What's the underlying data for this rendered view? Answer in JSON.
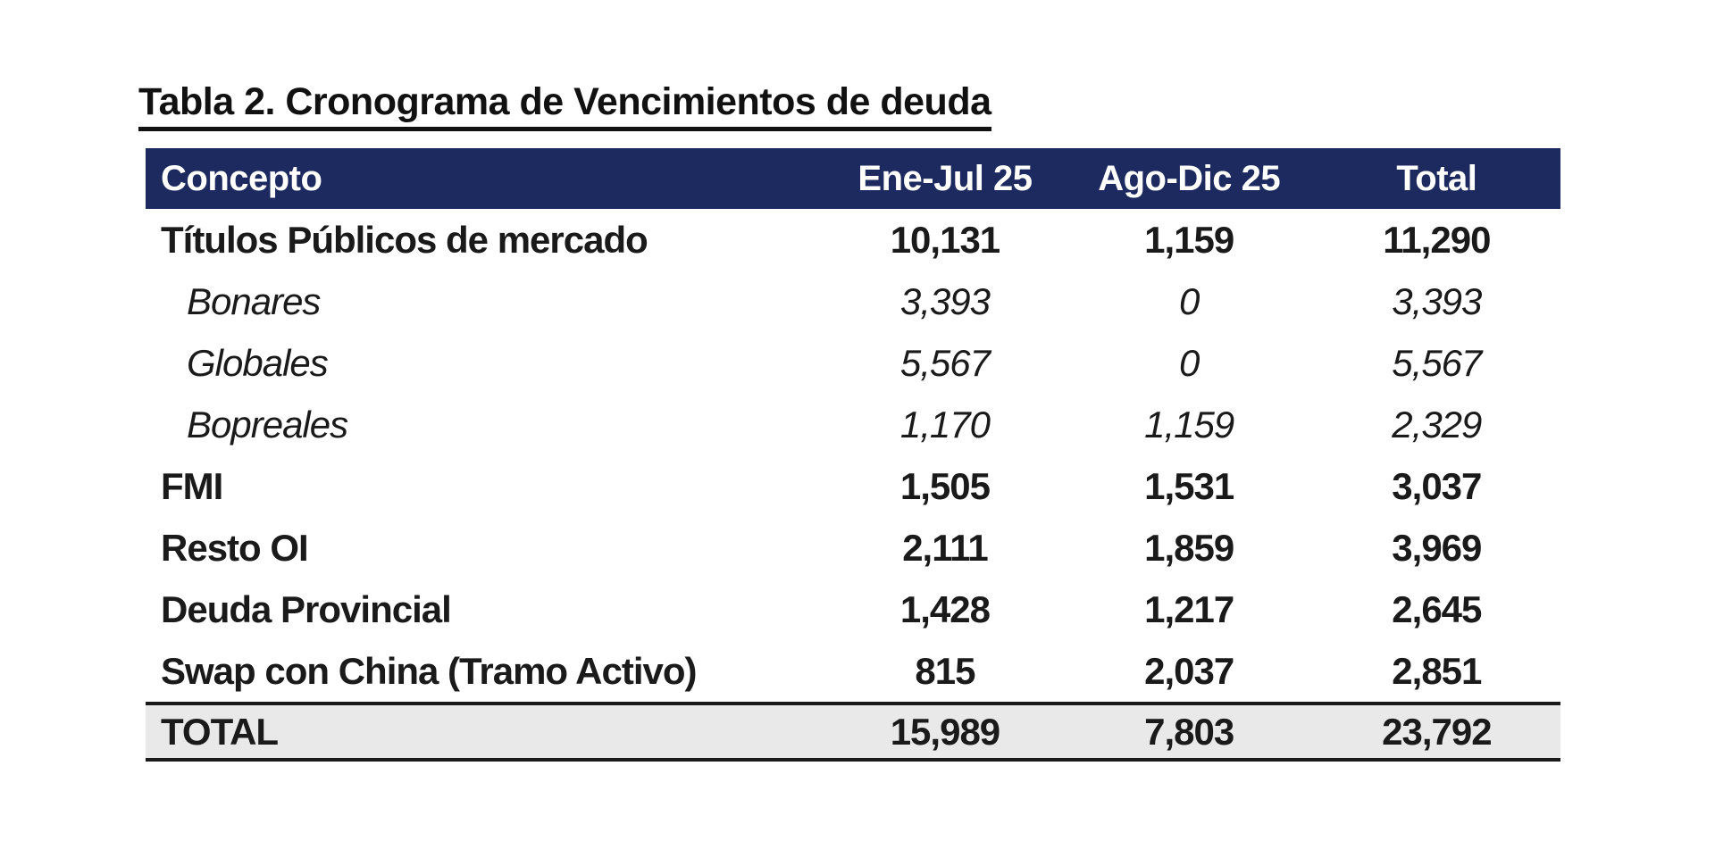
{
  "title": {
    "text": "Tabla 2. Cronograma de Vencimientos de deuda"
  },
  "colors": {
    "header_bg": "#1d2a5f",
    "header_text": "#ffffff",
    "total_row_bg": "#e9e9e9",
    "border": "#1a1a1a"
  },
  "table": {
    "columns": [
      "Concepto",
      "Ene-Jul 25",
      "Ago-Dic 25",
      "Total"
    ],
    "rows": [
      {
        "label": "Títulos Públicos de mercado",
        "style": "main",
        "values": [
          "10,131",
          "1,159",
          "11,290"
        ]
      },
      {
        "label": "Bonares",
        "style": "sub",
        "values": [
          "3,393",
          "0",
          "3,393"
        ]
      },
      {
        "label": "Globales",
        "style": "sub",
        "values": [
          "5,567",
          "0",
          "5,567"
        ]
      },
      {
        "label": "Bopreales",
        "style": "sub",
        "values": [
          "1,170",
          "1,159",
          "2,329"
        ]
      },
      {
        "label": "FMI",
        "style": "main",
        "values": [
          "1,505",
          "1,531",
          "3,037"
        ]
      },
      {
        "label": "Resto OI",
        "style": "main",
        "values": [
          "2,111",
          "1,859",
          "3,969"
        ]
      },
      {
        "label": "Deuda Provincial",
        "style": "main",
        "values": [
          "1,428",
          "1,217",
          "2,645"
        ]
      },
      {
        "label": "Swap con China (Tramo Activo)",
        "style": "main",
        "values": [
          "815",
          "2,037",
          "2,851"
        ]
      }
    ],
    "total_row": {
      "label": "TOTAL",
      "values": [
        "15,989",
        "7,803",
        "23,792"
      ]
    }
  },
  "chart_data": {
    "type": "table",
    "title": "Tabla 2. Cronograma de Vencimientos de deuda",
    "categories": [
      "Ene-Jul 25",
      "Ago-Dic 25",
      "Total"
    ],
    "series": [
      {
        "name": "Títulos Públicos de mercado",
        "values": [
          10131,
          1159,
          11290
        ]
      },
      {
        "name": "Bonares",
        "values": [
          3393,
          0,
          3393
        ]
      },
      {
        "name": "Globales",
        "values": [
          5567,
          0,
          5567
        ]
      },
      {
        "name": "Bopreales",
        "values": [
          1170,
          1159,
          2329
        ]
      },
      {
        "name": "FMI",
        "values": [
          1505,
          1531,
          3037
        ]
      },
      {
        "name": "Resto OI",
        "values": [
          2111,
          1859,
          3969
        ]
      },
      {
        "name": "Deuda Provincial",
        "values": [
          1428,
          1217,
          2645
        ]
      },
      {
        "name": "Swap con China (Tramo Activo)",
        "values": [
          815,
          2037,
          2851
        ]
      },
      {
        "name": "TOTAL",
        "values": [
          15989,
          7803,
          23792
        ]
      }
    ]
  }
}
